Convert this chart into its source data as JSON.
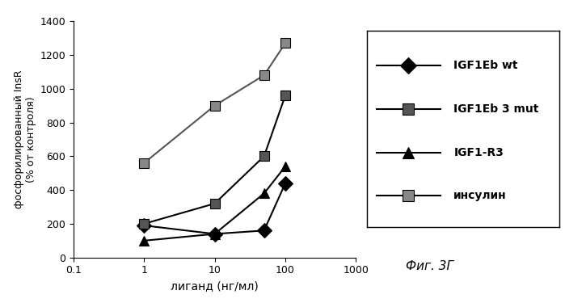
{
  "title": "Фиг. 3Г",
  "xlabel": "лиганд (нг/мл)",
  "ylabel": "фосфорилированный InsR\n(% от контроля)",
  "xlim": [
    0.1,
    1000
  ],
  "ylim": [
    0,
    1400
  ],
  "yticks": [
    0,
    200,
    400,
    600,
    800,
    1000,
    1200,
    1400
  ],
  "series": [
    {
      "label": "IGF1Eb wt",
      "x": [
        1,
        10,
        50,
        100
      ],
      "y": [
        190,
        140,
        160,
        440
      ],
      "color": "#000000",
      "marker": "D",
      "markersize": 9,
      "linewidth": 1.5,
      "linestyle": "-"
    },
    {
      "label": "IGF1Eb 3 mut",
      "x": [
        1,
        10,
        50,
        100
      ],
      "y": [
        200,
        320,
        600,
        960
      ],
      "color": "#000000",
      "marker": "s",
      "markersize": 9,
      "linewidth": 1.5,
      "linestyle": "-"
    },
    {
      "label": "IGF1-R3",
      "x": [
        1,
        10,
        50,
        100
      ],
      "y": [
        100,
        140,
        380,
        540
      ],
      "color": "#000000",
      "marker": "^",
      "markersize": 9,
      "linewidth": 1.5,
      "linestyle": "-"
    },
    {
      "label": "инсулин",
      "x": [
        1,
        10,
        50,
        100
      ],
      "y": [
        560,
        900,
        1080,
        1270
      ],
      "color": "#555555",
      "marker": "s",
      "markersize": 9,
      "linewidth": 1.5,
      "linestyle": "-"
    }
  ],
  "background_color": "#ffffff",
  "fig_width": 6.99,
  "fig_height": 3.75,
  "dpi": 100
}
